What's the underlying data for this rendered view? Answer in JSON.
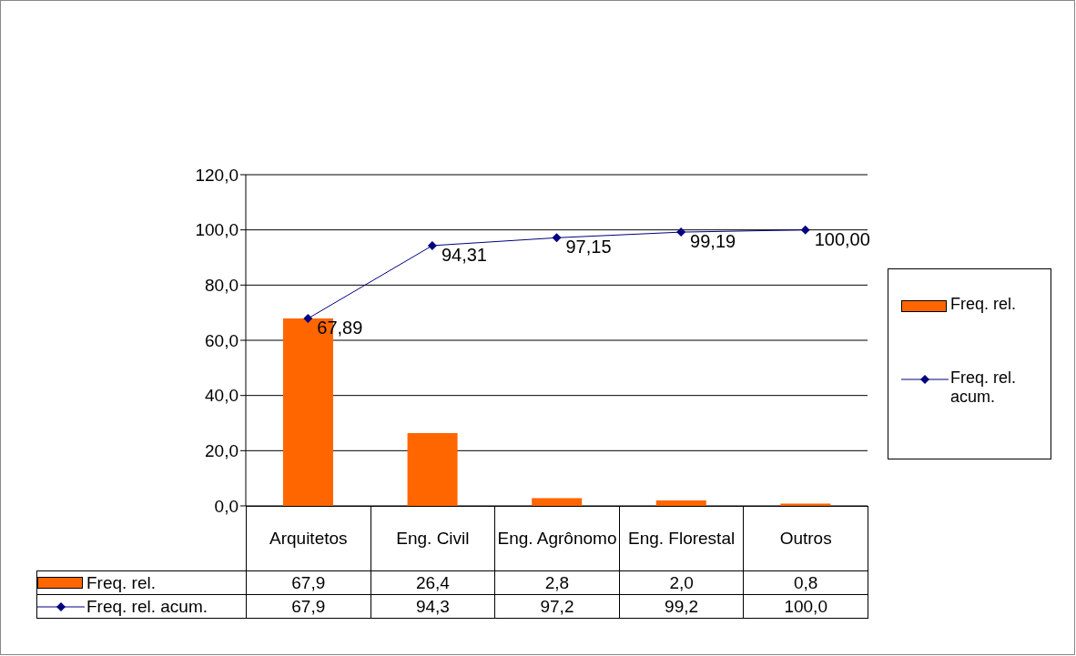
{
  "chart_data": {
    "type": "bar",
    "categories": [
      "Arquitetos",
      "Eng. Civil",
      "Eng. Agrônomo",
      "Eng. Florestal",
      "Outros"
    ],
    "series": [
      {
        "name": "Freq. rel.",
        "color": "#ff6600",
        "values": [
          67.9,
          26.4,
          2.8,
          2.0,
          0.8
        ],
        "value_labels": [
          "67,9",
          "26,4",
          "2,8",
          "2,0",
          "0,8"
        ]
      },
      {
        "name": "Freq. rel. acum.",
        "type": "line",
        "color": "#000080",
        "values": [
          67.89,
          94.31,
          97.15,
          99.19,
          100.0
        ],
        "value_labels": [
          "67,89",
          "94,31",
          "97,15",
          "99,19",
          "100,00"
        ]
      }
    ],
    "ylim": [
      0,
      120
    ],
    "yticks": [
      {
        "value": 0,
        "label": "0,0"
      },
      {
        "value": 20,
        "label": "20,0"
      },
      {
        "value": 40,
        "label": "40,0"
      },
      {
        "value": 60,
        "label": "60,0"
      },
      {
        "value": 80,
        "label": "80,0"
      },
      {
        "value": 100,
        "label": "100,0"
      },
      {
        "value": 120,
        "label": "120,0"
      }
    ],
    "annotations": [
      "67,9",
      "94,3",
      "97,2",
      "99,2",
      "100,0"
    ],
    "grid": "y",
    "legend": "right",
    "marker": "diamond",
    "line_style": "solid"
  }
}
